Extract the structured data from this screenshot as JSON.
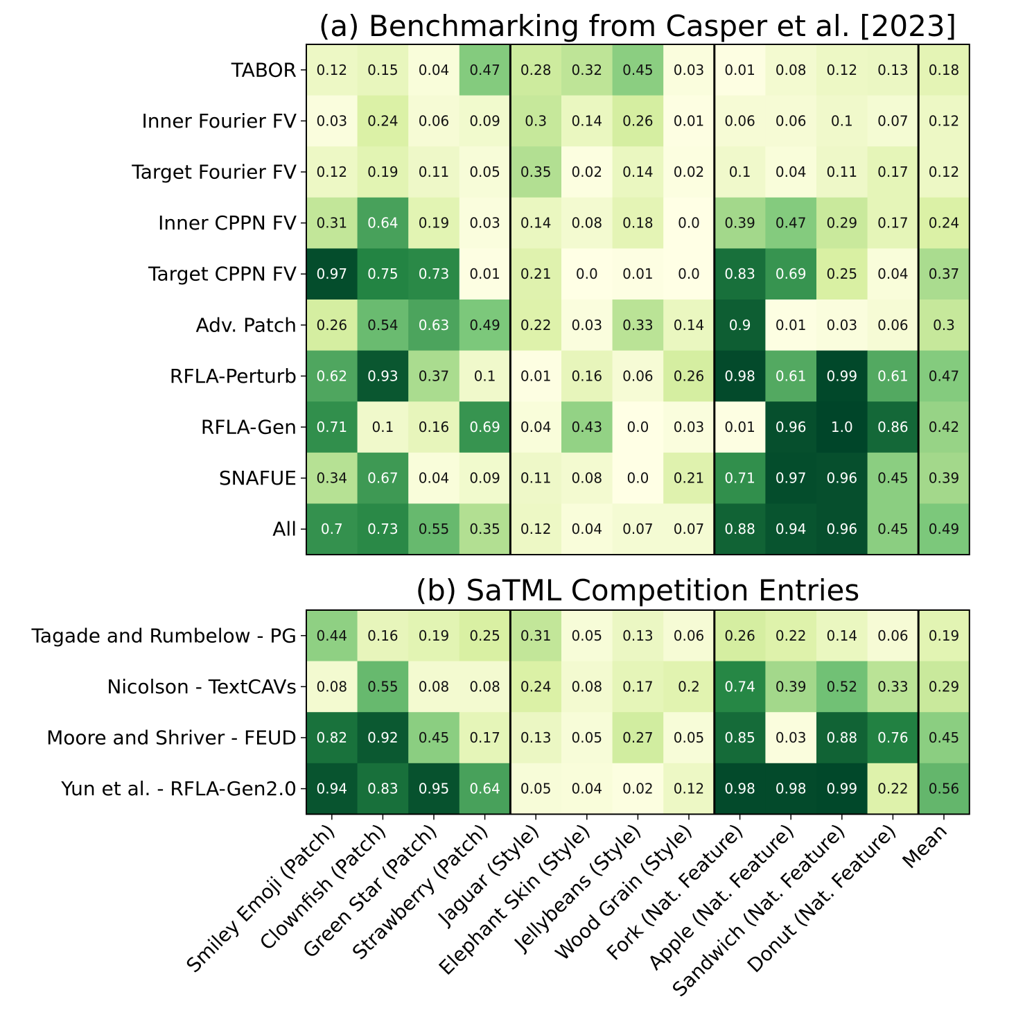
{
  "chart_data": [
    {
      "type": "heatmap",
      "title": "(a) Benchmarking from Casper et al. [2023]",
      "colormap": [
        "#ffffe5",
        "#d9f0a3",
        "#78c679",
        "#238443",
        "#004529"
      ],
      "rows": [
        "TABOR",
        "Inner Fourier FV",
        "Target Fourier FV",
        "Inner CPPN FV",
        "Target CPPN FV",
        "Adv. Patch",
        "RFLA-Perturb",
        "RFLA-Gen",
        "SNAFUE",
        "All"
      ],
      "columns": [
        "Smiley Emoji (Patch)",
        "Clownfish (Patch)",
        "Green Star (Patch)",
        "Strawberry (Patch)",
        "Jaguar (Style)",
        "Elephant Skin (Style)",
        "Jellybeans (Style)",
        "Wood Grain (Style)",
        "Fork (Nat. Feature)",
        "Apple (Nat. Feature)",
        "Sandwich (Nat. Feature)",
        "Donut (Nat. Feature)",
        "Mean"
      ],
      "values": [
        [
          "0.12",
          "0.15",
          "0.04",
          "0.47",
          "0.28",
          "0.32",
          "0.45",
          "0.03",
          "0.01",
          "0.08",
          "0.12",
          "0.13",
          "0.18"
        ],
        [
          "0.03",
          "0.24",
          "0.06",
          "0.09",
          "0.3",
          "0.14",
          "0.26",
          "0.01",
          "0.06",
          "0.06",
          "0.1",
          "0.07",
          "0.12"
        ],
        [
          "0.12",
          "0.19",
          "0.11",
          "0.05",
          "0.35",
          "0.02",
          "0.14",
          "0.02",
          "0.1",
          "0.04",
          "0.11",
          "0.17",
          "0.12"
        ],
        [
          "0.31",
          "0.64",
          "0.19",
          "0.03",
          "0.14",
          "0.08",
          "0.18",
          "0.0",
          "0.39",
          "0.47",
          "0.29",
          "0.17",
          "0.24"
        ],
        [
          "0.97",
          "0.75",
          "0.73",
          "0.01",
          "0.21",
          "0.0",
          "0.01",
          "0.0",
          "0.83",
          "0.69",
          "0.25",
          "0.04",
          "0.37"
        ],
        [
          "0.26",
          "0.54",
          "0.63",
          "0.49",
          "0.22",
          "0.03",
          "0.33",
          "0.14",
          "0.9",
          "0.01",
          "0.03",
          "0.06",
          "0.3"
        ],
        [
          "0.62",
          "0.93",
          "0.37",
          "0.1",
          "0.01",
          "0.16",
          "0.06",
          "0.26",
          "0.98",
          "0.61",
          "0.99",
          "0.61",
          "0.47"
        ],
        [
          "0.71",
          "0.1",
          "0.16",
          "0.69",
          "0.04",
          "0.43",
          "0.0",
          "0.03",
          "0.01",
          "0.96",
          "1.0",
          "0.86",
          "0.42"
        ],
        [
          "0.34",
          "0.67",
          "0.04",
          "0.09",
          "0.11",
          "0.08",
          "0.0",
          "0.21",
          "0.71",
          "0.97",
          "0.96",
          "0.45",
          "0.39"
        ],
        [
          "0.7",
          "0.73",
          "0.55",
          "0.35",
          "0.12",
          "0.04",
          "0.07",
          "0.07",
          "0.88",
          "0.94",
          "0.96",
          "0.45",
          "0.49"
        ]
      ],
      "group_dividers_after_columns": [
        4,
        8,
        12
      ]
    },
    {
      "type": "heatmap",
      "title": "(b) SaTML Competition Entries",
      "colormap": [
        "#ffffe5",
        "#d9f0a3",
        "#78c679",
        "#238443",
        "#004529"
      ],
      "rows": [
        "Tagade and Rumbelow - PG",
        "Nicolson - TextCAVs",
        "Moore and Shriver - FEUD",
        "Yun et al. - RFLA-Gen2.0"
      ],
      "columns": [
        "Smiley Emoji (Patch)",
        "Clownfish (Patch)",
        "Green Star (Patch)",
        "Strawberry (Patch)",
        "Jaguar (Style)",
        "Elephant Skin (Style)",
        "Jellybeans (Style)",
        "Wood Grain (Style)",
        "Fork (Nat. Feature)",
        "Apple (Nat. Feature)",
        "Sandwich (Nat. Feature)",
        "Donut (Nat. Feature)",
        "Mean"
      ],
      "values": [
        [
          "0.44",
          "0.16",
          "0.19",
          "0.25",
          "0.31",
          "0.05",
          "0.13",
          "0.06",
          "0.26",
          "0.22",
          "0.14",
          "0.06",
          "0.19"
        ],
        [
          "0.08",
          "0.55",
          "0.08",
          "0.08",
          "0.24",
          "0.08",
          "0.17",
          "0.2",
          "0.74",
          "0.39",
          "0.52",
          "0.33",
          "0.29"
        ],
        [
          "0.82",
          "0.92",
          "0.45",
          "0.17",
          "0.13",
          "0.05",
          "0.27",
          "0.05",
          "0.85",
          "0.03",
          "0.88",
          "0.76",
          "0.45"
        ],
        [
          "0.94",
          "0.83",
          "0.95",
          "0.64",
          "0.05",
          "0.04",
          "0.02",
          "0.12",
          "0.98",
          "0.98",
          "0.99",
          "0.22",
          "0.56"
        ]
      ],
      "group_dividers_after_columns": [
        4,
        8,
        12
      ]
    }
  ]
}
